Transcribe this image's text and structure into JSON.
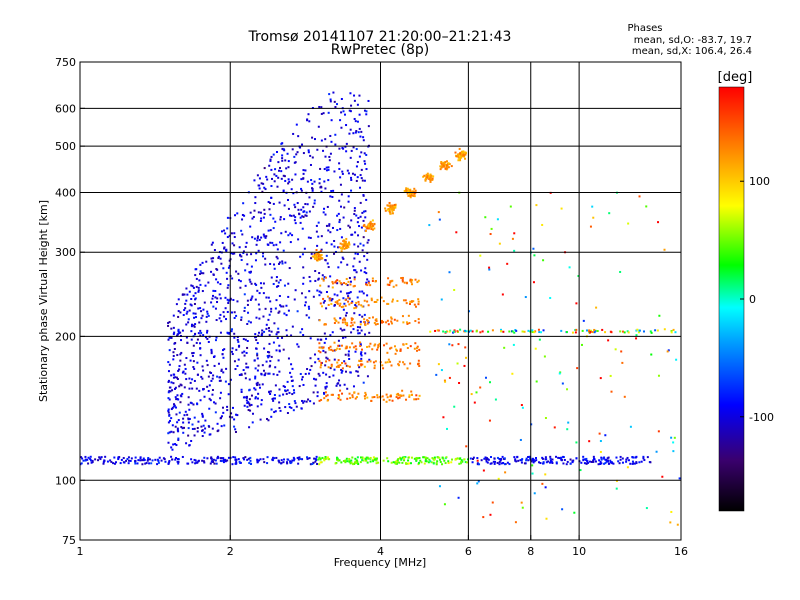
{
  "chart_data": {
    "type": "scatter",
    "title": "Tromsø 20141107 21:20:00–21:21:43",
    "subtitle": "RwPretec (8p)",
    "xlabel": "Frequency [MHz]",
    "ylabel": "Stationary phase Virtual Height [km]",
    "x_scale": "log",
    "y_scale": "log",
    "xlim": [
      1,
      16
    ],
    "ylim": [
      75,
      750
    ],
    "x_ticks": [
      1,
      2,
      4,
      6,
      8,
      10,
      16
    ],
    "x_tick_labels": [
      "1",
      "2",
      "4",
      "6",
      "8",
      "10",
      "16"
    ],
    "y_ticks": [
      75,
      100,
      200,
      300,
      400,
      500,
      600,
      750
    ],
    "y_tick_labels": [
      "75",
      "100",
      "200",
      "300",
      "400",
      "500",
      "600",
      "750"
    ],
    "x_gridlines": [
      2,
      4,
      6,
      8,
      10
    ],
    "y_gridlines": [
      100,
      200,
      300,
      400,
      500,
      600
    ],
    "grid": true,
    "phases_box": {
      "title": "Phases",
      "line1": "mean, sd,O: -83.7, 19.7",
      "line2": "mean, sd,X: 106.4, 26.4"
    },
    "colorbar": {
      "label": "[deg]",
      "range": [
        -180,
        180
      ],
      "ticks": [
        100,
        0,
        -100
      ],
      "tick_labels": [
        "100",
        "0",
        "-100"
      ],
      "colormap": [
        "#000000",
        "#3a006e",
        "#0000ff",
        "#00a0ff",
        "#00ffff",
        "#00ff00",
        "#ffff00",
        "#ff8000",
        "#ff0000"
      ]
    },
    "series": [
      {
        "trace": "ground-echo",
        "x_range": [
          1.0,
          14.0
        ],
        "h_range": [
          108,
          112
        ],
        "phase": -95,
        "points": [
          [
            1.0,
            110
          ],
          [
            1.2,
            110
          ],
          [
            1.5,
            109
          ],
          [
            2.0,
            109
          ],
          [
            2.5,
            109
          ],
          [
            3.0,
            109
          ],
          [
            3.5,
            109
          ],
          [
            4.0,
            108
          ],
          [
            5.0,
            108
          ],
          [
            6.0,
            108
          ],
          [
            7.0,
            107
          ],
          [
            8.0,
            107
          ],
          [
            9.0,
            107
          ],
          [
            10.0,
            107
          ],
          [
            12.0,
            107
          ],
          [
            14.0,
            107
          ]
        ]
      },
      {
        "trace": "o-mode-diffuse",
        "x_range": [
          1.5,
          3.8
        ],
        "h_range": [
          115,
          650
        ],
        "phase": -100,
        "points": [
          [
            1.6,
            140
          ],
          [
            1.8,
            200
          ],
          [
            2.0,
            250
          ],
          [
            2.2,
            300
          ],
          [
            2.4,
            350
          ],
          [
            2.6,
            420
          ],
          [
            3.0,
            380
          ],
          [
            3.4,
            400
          ],
          [
            3.8,
            420
          ]
        ]
      },
      {
        "trace": "x-mode-f-trace",
        "x_range": [
          3.0,
          5.8
        ],
        "h_range": [
          290,
          480
        ],
        "phase": 120,
        "points": [
          [
            3.0,
            295
          ],
          [
            3.4,
            310
          ],
          [
            3.8,
            340
          ],
          [
            4.2,
            370
          ],
          [
            4.6,
            400
          ],
          [
            5.0,
            430
          ],
          [
            5.4,
            455
          ],
          [
            5.8,
            480
          ]
        ]
      },
      {
        "trace": "x-mode-low-traces",
        "x_range": [
          3.0,
          4.8
        ],
        "h_range": [
          150,
          260
        ],
        "phase": 130,
        "points": [
          [
            3.0,
            185
          ],
          [
            3.4,
            190
          ],
          [
            3.8,
            200
          ],
          [
            4.2,
            210
          ],
          [
            4.6,
            220
          ],
          [
            3.6,
            150
          ],
          [
            4.0,
            160
          ]
        ]
      },
      {
        "trace": "scattered-high-frequency",
        "x_range": [
          5.0,
          16.0
        ],
        "h_range": [
          80,
          400
        ],
        "phase": 60,
        "points": [
          [
            6.0,
            205
          ],
          [
            7.0,
            205
          ],
          [
            8.0,
            206
          ],
          [
            9.0,
            205
          ],
          [
            10.0,
            206
          ],
          [
            12.0,
            206
          ],
          [
            14.0,
            210
          ]
        ]
      }
    ]
  }
}
